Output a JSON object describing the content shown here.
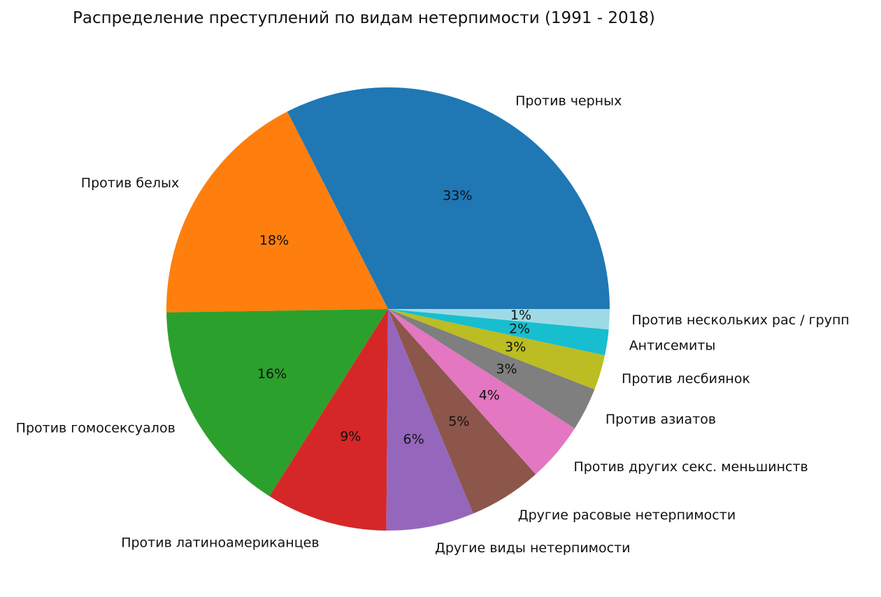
{
  "chart_data": {
    "type": "pie",
    "title": "Распределение преступлений по видам нетерпимости (1991 - 2018)",
    "start_angle_deg": 0,
    "direction": "counterclockwise",
    "legend": "none",
    "slices": [
      {
        "label": "Против черных",
        "percent": 33,
        "percent_label": "33%",
        "color": "#1f77b4"
      },
      {
        "label": "Против белых",
        "percent": 18,
        "percent_label": "18%",
        "color": "#ff7f0e"
      },
      {
        "label": "Против гомосексуалов",
        "percent": 16,
        "percent_label": "16%",
        "color": "#2ca02c"
      },
      {
        "label": "Против латиноамериканцев",
        "percent": 9,
        "percent_label": "9%",
        "color": "#d62728"
      },
      {
        "label": "Другие виды нетерпимости",
        "percent": 6.5,
        "percent_label": "6%",
        "color": "#9467bd"
      },
      {
        "label": "Другие расовые нетерпимости",
        "percent": 5.4,
        "percent_label": "5%",
        "color": "#8c564b"
      },
      {
        "label": "Против других секс. меньшинств",
        "percent": 4.4,
        "percent_label": "4%",
        "color": "#e377c2"
      },
      {
        "label": "Против азиатов",
        "percent": 3.2,
        "percent_label": "3%",
        "color": "#7f7f7f"
      },
      {
        "label": "Против лесбиянок",
        "percent": 2.6,
        "percent_label": "3%",
        "color": "#bcbd22"
      },
      {
        "label": "Антисемиты",
        "percent": 1.9,
        "percent_label": "2%",
        "color": "#17becf"
      },
      {
        "label": "Против нескольких рас / групп",
        "percent": 1.5,
        "percent_label": "1%",
        "color": "#9edae5"
      }
    ]
  }
}
